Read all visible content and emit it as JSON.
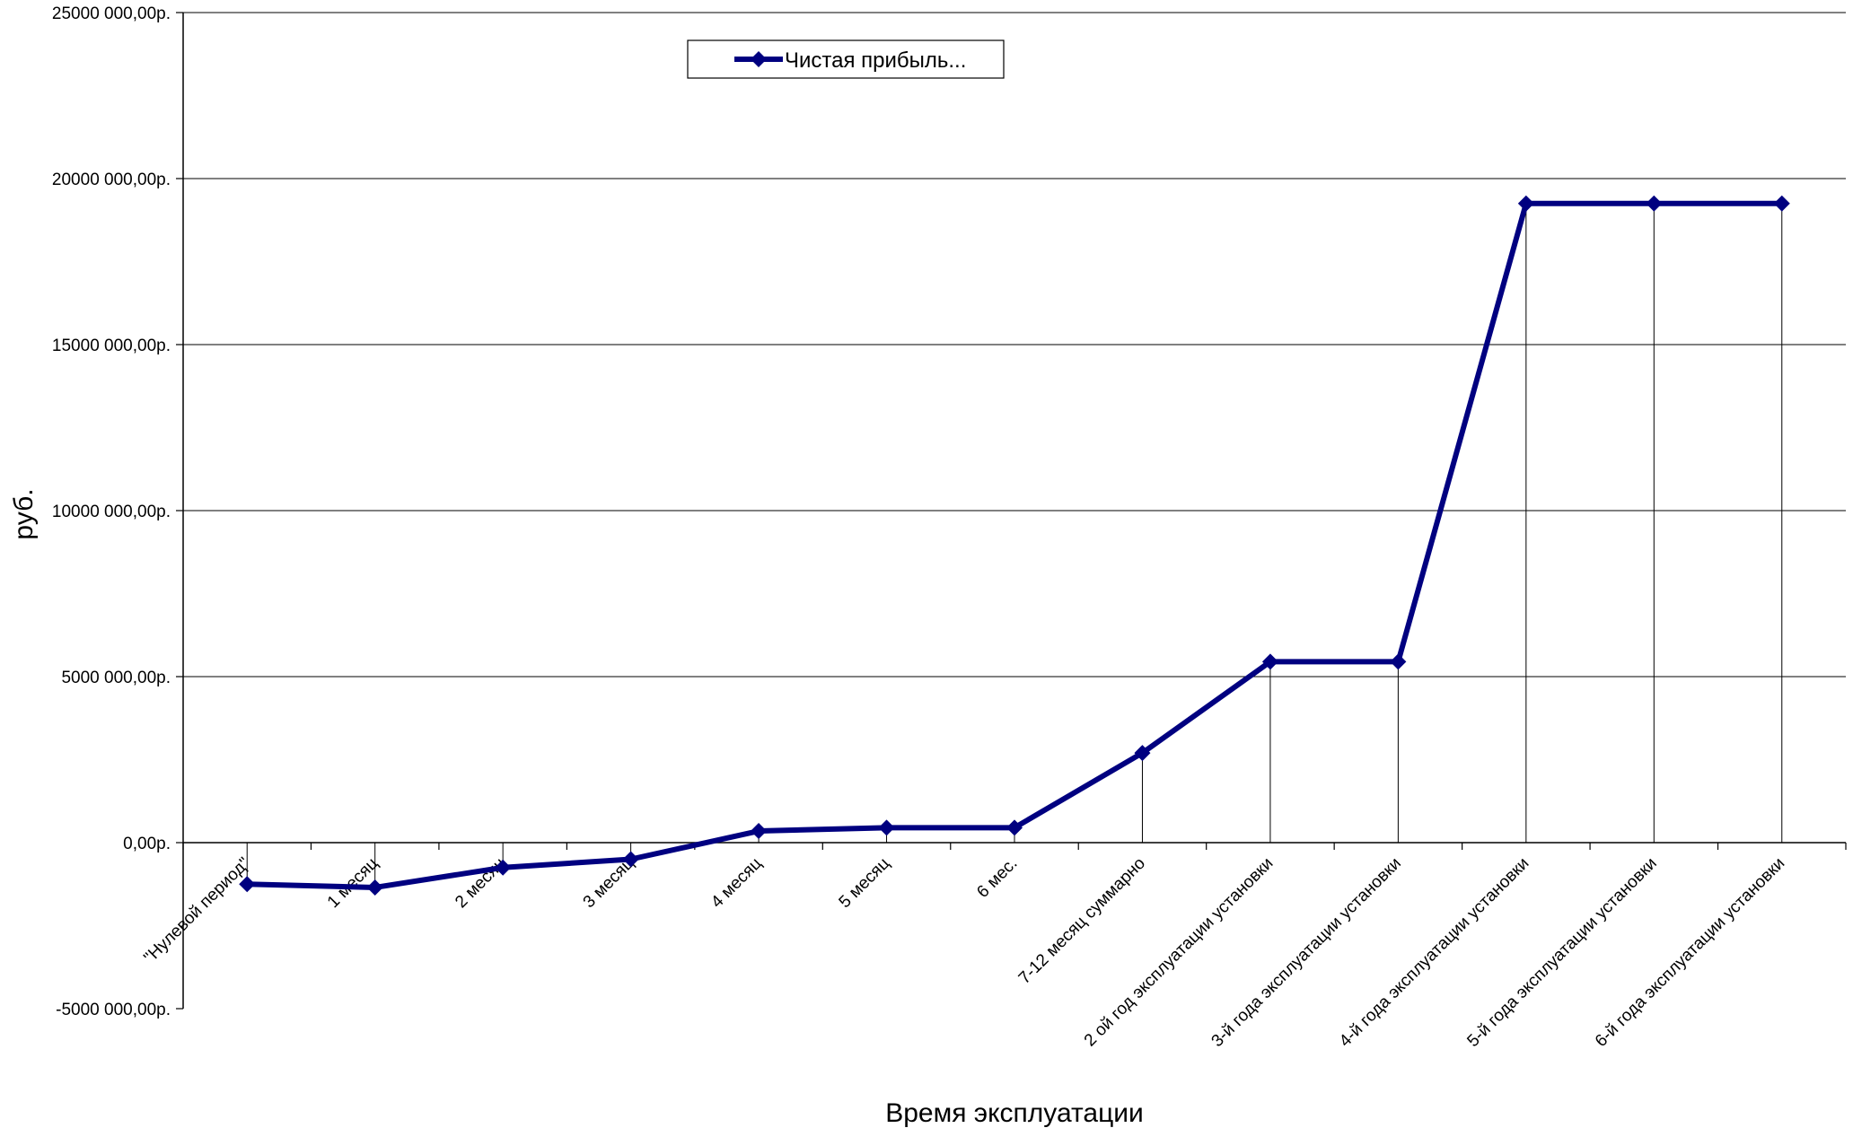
{
  "chart_data": {
    "type": "line",
    "title": "",
    "xlabel": "Время эксплуатации",
    "ylabel": "руб.",
    "ylim": [
      -5000000,
      25000000
    ],
    "y_step": 5000000,
    "y_tick_labels": [
      "-5000 000,00р.",
      "0,00р.",
      "5000 000,00р.",
      "10000 000,00р.",
      "15000 000,00р.",
      "20000 000,00р.",
      "25000 000,00р."
    ],
    "grid": "horizontal",
    "drop_lines": true,
    "legend_position": "top-center",
    "categories": [
      "\"Нулевой период\"",
      "1 месяц",
      "2 месяц",
      "3 месяц",
      "4 месяц",
      "5 месяц",
      "6 мес.",
      "7-12 месяц суммарно",
      "2 ой год эксплуатации установки",
      "3-й года эксплуатации установки",
      "4-й года эксплуатации установки",
      "5-й года эксплуатации установки",
      "6-й года эксплуатации установки"
    ],
    "series": [
      {
        "name": "Чистая прибыль...",
        "color": "#000080",
        "marker": "diamond",
        "values": [
          -1250000,
          -1350000,
          -750000,
          -500000,
          350000,
          450000,
          450000,
          2700000,
          5450000,
          5450000,
          19250000,
          19250000,
          19250000
        ]
      }
    ]
  }
}
